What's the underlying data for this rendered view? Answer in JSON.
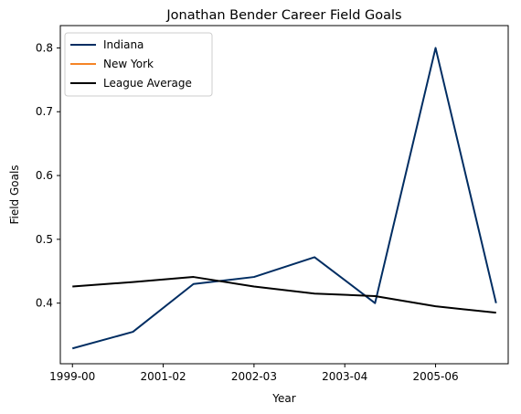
{
  "chart_data": {
    "type": "line",
    "title": "Jonathan Bender Career Field Goals",
    "xlabel": "Year",
    "ylabel": "Field Goals",
    "x_tick_labels": [
      "1999-00",
      "2001-02",
      "2002-03",
      "2003-04",
      "2005-06"
    ],
    "x_tick_positions": [
      0,
      1.5,
      3,
      4.5,
      6
    ],
    "xlim": [
      -0.2,
      7.2
    ],
    "ylim": [
      0.305,
      0.835
    ],
    "y_ticks": [
      0.4,
      0.5,
      0.6,
      0.7,
      0.8
    ],
    "grid": false,
    "legend_position": "top-left",
    "series": [
      {
        "name": "Indiana",
        "color": "#002d62",
        "x": [
          0,
          1,
          2,
          3,
          4,
          5,
          6,
          7
        ],
        "values": [
          0.329,
          0.355,
          0.43,
          0.441,
          0.472,
          0.4,
          0.8,
          0.4
        ]
      },
      {
        "name": "New York",
        "color": "#f58426",
        "x": [],
        "values": []
      },
      {
        "name": "League Average",
        "color": "#000000",
        "x": [
          0,
          1,
          2,
          3,
          4,
          5,
          6,
          7
        ],
        "values": [
          0.426,
          0.433,
          0.441,
          0.426,
          0.415,
          0.411,
          0.395,
          0.385
        ]
      }
    ]
  }
}
